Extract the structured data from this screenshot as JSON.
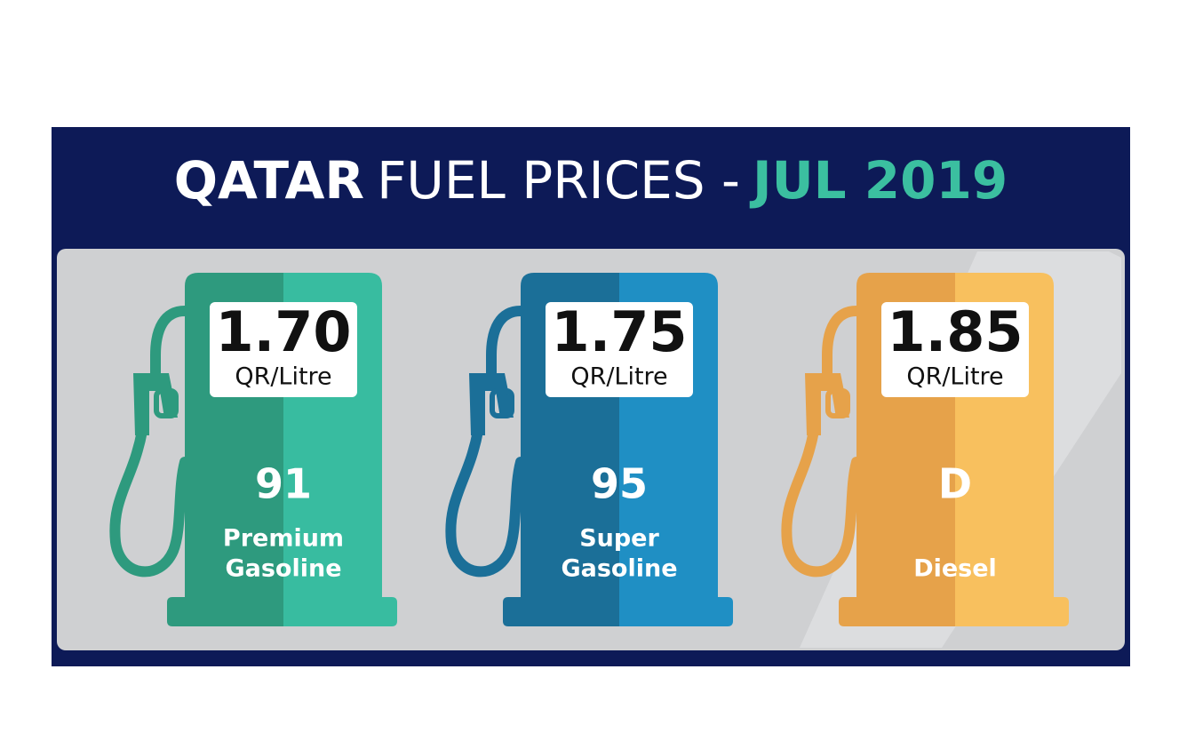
{
  "header": {
    "title_bold": "QATAR",
    "title_regular": "FUEL PRICES -",
    "title_date": "JUL 2019"
  },
  "pumps": [
    {
      "price": "1.70",
      "unit": "QR/Litre",
      "grade": "91",
      "name_lines": [
        "Premium",
        "Gasoline"
      ],
      "dark_color": "#2e9a7e",
      "light_color": "#38bca0"
    },
    {
      "price": "1.75",
      "unit": "QR/Litre",
      "grade": "95",
      "name_lines": [
        "Super",
        "Gasoline"
      ],
      "dark_color": "#1b6f98",
      "light_color": "#1f8fc4"
    },
    {
      "price": "1.85",
      "unit": "QR/Litre",
      "grade": "D",
      "name_lines": [
        "Diesel"
      ],
      "dark_color": "#e6a24a",
      "light_color": "#f8c05e"
    }
  ]
}
